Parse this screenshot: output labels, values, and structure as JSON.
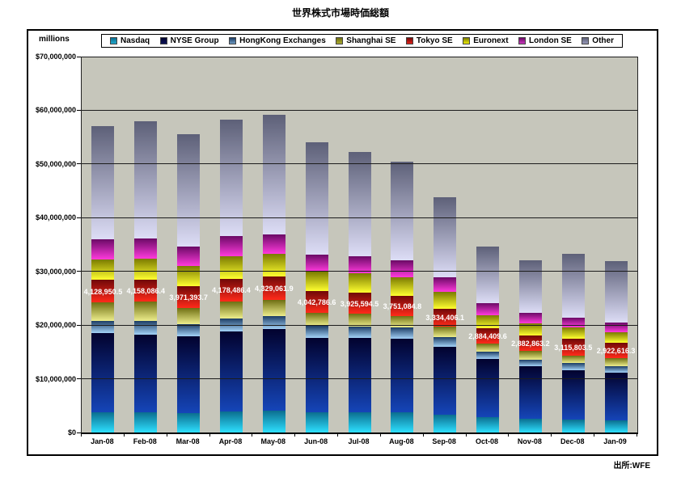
{
  "title": "世界株式市場時価総額",
  "unit_note": "millions",
  "source": "出所:WFE",
  "chart_data": {
    "type": "bar",
    "stacked": true,
    "title": "世界株式市場時価総額",
    "ylabel": "millions (USD)",
    "ylim": [
      0,
      70000000
    ],
    "y_ticks": [
      0,
      10000000,
      20000000,
      30000000,
      40000000,
      50000000,
      60000000,
      70000000
    ],
    "y_tick_labels": [
      "$0",
      "$10,000,000",
      "$20,000,000",
      "$30,000,000",
      "$40,000,000",
      "$50,000,000",
      "$60,000,000",
      "$70,000,000"
    ],
    "grid": "horizontal, drawn over bars",
    "legend_position": "top",
    "plot_background": "#C6C6BB",
    "categories": [
      "Jan-08",
      "Feb-08",
      "Mar-08",
      "Apr-08",
      "May-08",
      "Jun-08",
      "Jul-08",
      "Aug-08",
      "Sep-08",
      "Oct-08",
      "Nov-08",
      "Dec-08",
      "Jan-09"
    ],
    "series": [
      {
        "name": "Nasdaq",
        "legend_color": "#22A8CC",
        "gradient_top": "#0B6E8F",
        "gradient_bottom": "#2EE0FF",
        "values": [
          3798700,
          3736300,
          3674000,
          3901000,
          4029000,
          3766000,
          3771000,
          3772000,
          3362000,
          2870000,
          2522000,
          2396300,
          2203000
        ]
      },
      {
        "name": "NYSE Group",
        "legend_color": "#0B1358",
        "gradient_top": "#02022E",
        "gradient_bottom": "#1545B8",
        "values": [
          14706000,
          14503000,
          14263000,
          14944000,
          15181000,
          13891000,
          13800000,
          13717000,
          12663000,
          10842000,
          9756000,
          9208900,
          8867000
        ]
      },
      {
        "name": "HongKong Exchanges",
        "legend_color": "#6E9AC2",
        "gradient_top": "#1C3C64",
        "gradient_bottom": "#A3D2F7",
        "values": [
          2344000,
          2486000,
          2255000,
          2439000,
          2430000,
          2220000,
          2128000,
          2070000,
          1794000,
          1326000,
          1309000,
          1328800,
          1237000
        ]
      },
      {
        "name": "Shanghai SE",
        "legend_color": "#ABAB30",
        "gradient_top": "#6E6E12",
        "gradient_bottom": "#EDED8C",
        "values": [
          3419000,
          3605000,
          3012000,
          3175000,
          3030000,
          2374000,
          2397000,
          2091000,
          1895000,
          1493000,
          1566000,
          1425400,
          1484000
        ]
      },
      {
        "name": "Tokyo SE",
        "legend_color": "#E32219",
        "gradient_top": "#700808",
        "gradient_bottom": "#FF2A1A",
        "values": [
          4128950.5,
          4158086.4,
          3971393.7,
          4178486.4,
          4329061.9,
          4042786.6,
          3925594.5,
          3751084.8,
          3334406.1,
          2884409.6,
          2882863.2,
          3115803.5,
          2922616.3
        ]
      },
      {
        "name": "Euronext",
        "legend_color": "#ECEC08",
        "gradient_top": "#7A7A00",
        "gradient_bottom": "#FFFF30",
        "values": [
          3882000,
          3913000,
          3904000,
          4167000,
          4199000,
          3622000,
          3675000,
          3566000,
          3125000,
          2440000,
          2228000,
          2101700,
          1955000
        ]
      },
      {
        "name": "London SE",
        "legend_color": "#CC39BE",
        "gradient_top": "#6B0A66",
        "gradient_bottom": "#FF3ADC",
        "values": [
          3716000,
          3758000,
          3535000,
          3713000,
          3741000,
          3272000,
          3186000,
          3108000,
          2708000,
          2167000,
          2024000,
          1868200,
          1790000
        ]
      },
      {
        "name": "Other",
        "legend_color": "#9597B6",
        "gradient_top": "#5D6078",
        "gradient_bottom": "#DDDDF6",
        "values": [
          21000000,
          21800000,
          21000000,
          21700000,
          22300000,
          20900000,
          19400000,
          18300000,
          15000000,
          10600000,
          9800000,
          11900000,
          11400000
        ]
      }
    ],
    "value_labels": {
      "series": "Tokyo SE",
      "labels": [
        "4,128,950.5",
        "4,158,086.4",
        "3,971,393.7",
        "4,178,486.4",
        "4,329,061.9",
        "4,042,786.6",
        "3,925,594.5",
        "3,751,084.8",
        "3,334,406.1",
        "2,884,409.6",
        "2,882,863.2",
        "3,115,803.5",
        "2,922,616.3"
      ]
    }
  }
}
